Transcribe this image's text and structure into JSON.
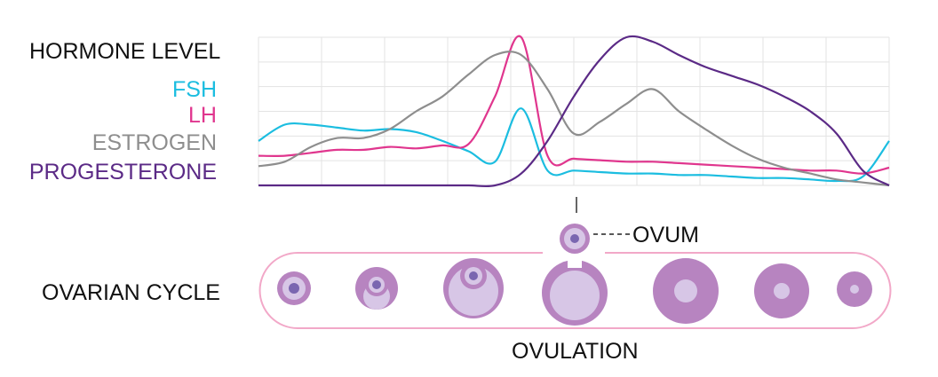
{
  "labels": {
    "hormone_level": "HORMONE LEVEL",
    "ovarian_cycle": "OVARIAN CYCLE",
    "ovum": "OVUM",
    "ovulation": "OVULATION"
  },
  "legend": [
    {
      "name": "FSH",
      "color": "#1bbde0"
    },
    {
      "name": "LH",
      "color": "#e0368e"
    },
    {
      "name": "ESTROGEN",
      "color": "#8e8e8e"
    },
    {
      "name": "PROGESTERONE",
      "color": "#5b2a86"
    }
  ],
  "colors": {
    "grid": "#e3e3e3",
    "cycle_outline": "#f2a8c8",
    "follicle_dark": "#b784c0",
    "follicle_light": "#d7c6e6",
    "nucleus": "#7a66b0",
    "text": "#111111"
  },
  "chart_data": {
    "type": "line",
    "title": "HORMONE LEVEL",
    "xlabel": "",
    "ylabel": "",
    "x": [
      0,
      1,
      2,
      3,
      4,
      5,
      6,
      7,
      8,
      9,
      10,
      11,
      12,
      13,
      14,
      15,
      16,
      17,
      18,
      19,
      20,
      21,
      22,
      23,
      24
    ],
    "series": [
      {
        "name": "FSH",
        "values": [
          30,
          41,
          41,
          39,
          37,
          38,
          36,
          30,
          23,
          16,
          52,
          10,
          10,
          9,
          8,
          8,
          7,
          7,
          6,
          5,
          5,
          4,
          3,
          6,
          30
        ]
      },
      {
        "name": "LH",
        "values": [
          20,
          20,
          22,
          24,
          24,
          26,
          25,
          27,
          28,
          60,
          100,
          20,
          18,
          17,
          16,
          16,
          15,
          14,
          13,
          12,
          11,
          10,
          10,
          8,
          12
        ]
      },
      {
        "name": "ESTROGEN",
        "values": [
          13,
          16,
          26,
          32,
          32,
          38,
          50,
          60,
          75,
          88,
          88,
          65,
          35,
          43,
          55,
          65,
          50,
          38,
          27,
          18,
          12,
          8,
          4,
          2,
          0
        ]
      },
      {
        "name": "PROGESTERONE",
        "values": [
          0,
          0,
          0,
          0,
          0,
          0,
          0,
          0,
          0,
          0,
          8,
          30,
          60,
          85,
          100,
          97,
          88,
          80,
          74,
          68,
          60,
          50,
          35,
          10,
          0
        ]
      }
    ],
    "ylim": [
      0,
      100
    ],
    "grid": true
  }
}
